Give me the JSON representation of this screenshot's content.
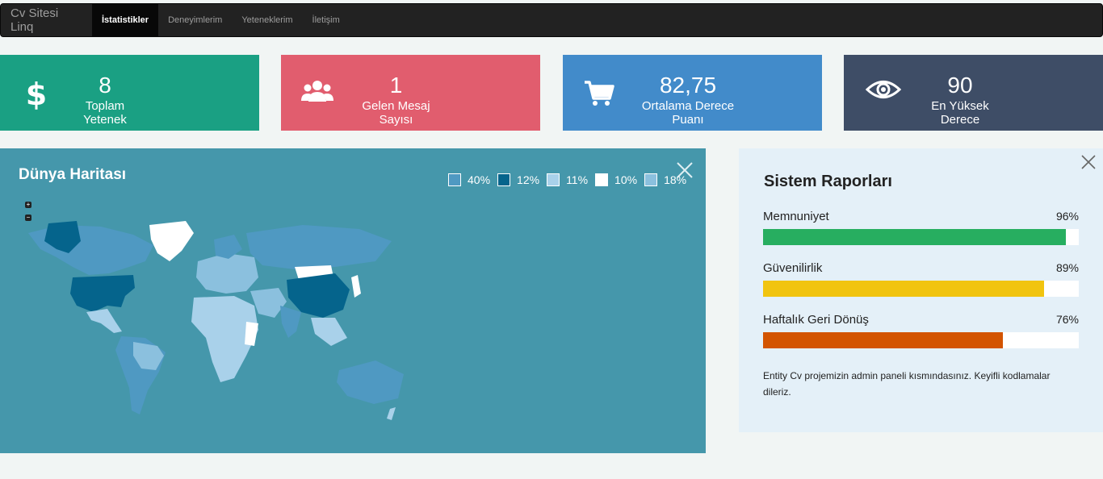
{
  "navbar": {
    "brand": "Cv Sitesi Linq",
    "items": [
      {
        "label": "İstatistikler",
        "active": true
      },
      {
        "label": "Deneyimlerim",
        "active": false
      },
      {
        "label": "Yeteneklerim",
        "active": false
      },
      {
        "label": "İletişim",
        "active": false
      }
    ]
  },
  "stats": [
    {
      "value": "8",
      "label": "Toplam Yetenek",
      "icon": "dollar-icon",
      "color": "#1aa083"
    },
    {
      "value": "1",
      "label": "Gelen Mesaj Sayısı",
      "icon": "users-icon",
      "color": "#e15d6e"
    },
    {
      "value": "82,75",
      "label": "Ortalama Derece Puanı",
      "icon": "cart-icon",
      "color": "#428bca"
    },
    {
      "value": "90",
      "label": "En Yüksek Derece",
      "icon": "eye-icon",
      "color": "#3e4d66"
    }
  ],
  "map": {
    "title": "Dünya Haritası",
    "legend": [
      {
        "label": "40%",
        "color": "#4f99c2"
      },
      {
        "label": "12%",
        "color": "#05648c"
      },
      {
        "label": "11%",
        "color": "#a9d1ea"
      },
      {
        "label": "10%",
        "color": "#ffffff"
      },
      {
        "label": "18%",
        "color": "#8bc0de"
      }
    ],
    "zoom_in": "+",
    "zoom_out": "−"
  },
  "reports": {
    "title": "Sistem Raporları",
    "bars": [
      {
        "label": "Memnuniyet",
        "percent_text": "96%",
        "percent": 96,
        "color": "#27ae60"
      },
      {
        "label": "Güvenilirlik",
        "percent_text": "89%",
        "percent": 89,
        "color": "#f1c40f"
      },
      {
        "label": "Haftalık Geri Dönüş",
        "percent_text": "76%",
        "percent": 76,
        "color": "#d35400"
      }
    ],
    "note": "Entity Cv projemizin admin paneli kısmındasınız. Keyifli kodlamalar dileriz."
  }
}
